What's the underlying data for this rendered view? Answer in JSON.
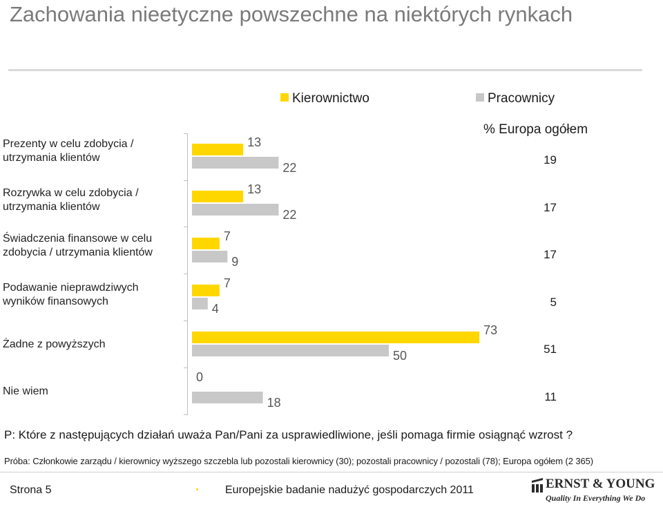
{
  "header": {
    "title": "Zachowania nieetyczne powszechne na niektórych rynkach"
  },
  "colors": {
    "accent_yellow": "#ffd700",
    "series_gray": "#c8c8c8",
    "title_gray": "#7a7a7a"
  },
  "legend": {
    "europe_header": "% Europa ogółem"
  },
  "chart_data": {
    "type": "bar",
    "orientation": "horizontal",
    "categories": [
      "Prezenty w celu zdobycia / utrzymania klientów",
      "Rozrywka w celu zdobycia / utrzymania klientów",
      "Świadczenia finansowe w celu zdobycia / utrzymania klientów",
      "Podawanie nieprawdziwych wyników finansowych",
      "Żadne z powyższych",
      "Nie wiem"
    ],
    "series": [
      {
        "name": "Kierownictwo",
        "color": "#ffd700",
        "values": [
          13,
          13,
          7,
          7,
          73,
          0
        ]
      },
      {
        "name": "Pracownicy",
        "color": "#c8c8c8",
        "values": [
          22,
          22,
          9,
          4,
          50,
          18
        ]
      }
    ],
    "europe_total": [
      "19",
      "17",
      "17",
      "5",
      "51",
      "11"
    ],
    "xlim": [
      0,
      100
    ],
    "legend_position": "top-right"
  },
  "notes": {
    "question": "P: Które z następujących działań uważa Pan/Pani za usprawiedliwione, jeśli pomaga firmie osiągnąć wzrost ?",
    "sample": "Próba: Członkowie zarządu / kierownicy wyższego szczebla lub pozostali kierownicy (30); pozostali pracownicy / pozostali (78); Europa ogółem (2 365)"
  },
  "footer": {
    "page": "Strona 5",
    "report_title": "Europejskie badanie nadużyć gospodarczych 2011",
    "logo_brand": "ERNST & YOUNG",
    "logo_tagline": "Quality In Everything We Do"
  }
}
